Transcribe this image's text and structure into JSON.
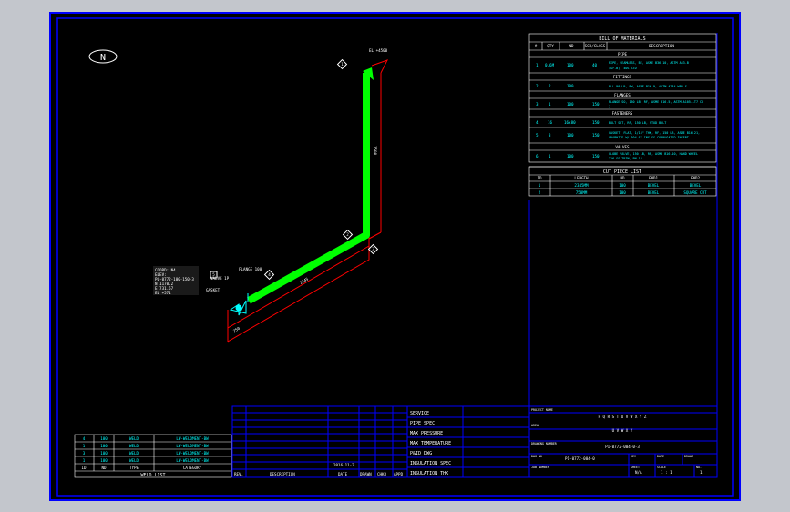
{
  "north_label": "N",
  "bom": {
    "title": "BILL OF MATERIALS",
    "headers": [
      "#",
      "QTY",
      "ND",
      "SCH/CLASS",
      "DESCRIPTION"
    ],
    "sections": [
      {
        "name": "PIPE",
        "rows": [
          [
            "1",
            "0.6M",
            "100",
            "40",
            "PIPE, SEAMLESS, BE, ASME B36.10, ASTM A53-B",
            "(Gr.B), 40S STD"
          ]
        ]
      },
      {
        "name": "FITTINGS",
        "rows": [
          [
            "2",
            "2",
            "100",
            "",
            "ELL 90 LR, BW, ASME B16.9, ASTM A234-WPB-S",
            ""
          ]
        ]
      },
      {
        "name": "FLANGES",
        "rows": [
          [
            "3",
            "1",
            "100",
            "150",
            "FLANGE SO, 150 LB, RF, ASME B16.5, ASTM A105-LT7 CL",
            "1"
          ]
        ]
      },
      {
        "name": "FASTENERS",
        "rows": [
          [
            "4",
            "16",
            "16x80",
            "150",
            "BOLT SET, RF, 150 LB, STUD BOLT",
            ""
          ],
          [
            "5",
            "3",
            "100",
            "150",
            "GASKET, FLAT, 1/16\" THK, RF, 150 LB, ASME B16.21,",
            "GRAPHITE W/ 304 SS INS SS CORRUGATED INSERT"
          ]
        ]
      },
      {
        "name": "VALVES",
        "rows": [
          [
            "6",
            "1",
            "100",
            "150",
            "GLOBE VALVE, 150 LB, RF, ASME B16.10, HAND WHEEL",
            "316 SS TRIM, PN 16"
          ]
        ]
      }
    ]
  },
  "cut_list": {
    "title": "CUT PIECE LIST",
    "headers": [
      "ID",
      "LENGTH",
      "ND",
      "END1",
      "END2"
    ],
    "rows": [
      [
        "1",
        "2345MM",
        "100",
        "BEVEL",
        "BEVEL"
      ],
      [
        "2",
        "750MM",
        "100",
        "BEVEL",
        "SQUARE CUT"
      ]
    ]
  },
  "weld_list": {
    "title": "WELD LIST",
    "headers": [
      "ID",
      "ND",
      "TYPE",
      "CATEGORY"
    ],
    "rows": [
      [
        "4",
        "100",
        "WELD",
        "LW-WELDMENT-BW"
      ],
      [
        "1",
        "100",
        "WELD",
        "LW-WELDMENT-BW"
      ],
      [
        "3",
        "100",
        "WELD",
        "LW-WELDMENT-BW"
      ],
      [
        "1",
        "100",
        "WELD",
        "LW-WELDMENT-BW"
      ]
    ]
  },
  "revision": {
    "headers": [
      "REV.",
      "DESCRIPTION",
      "DATE",
      "DRAWN",
      "CHKD",
      "APPD"
    ],
    "date_value": "2016-11-2"
  },
  "design": {
    "labels": [
      "SERVICE",
      "PIPE SPEC",
      "MAX PRESSURE",
      "MAX TEMPERATURE",
      "P&ID DWG",
      "INSULATION SPEC",
      "INSULATION THK"
    ]
  },
  "title_block": {
    "project_name_label": "PROJECT NAME",
    "project_name": "P Q R S T U V W X Y Z",
    "area_label": "AREA",
    "area": "U V W X Y",
    "drawing_label": "DRAWING NUMBER",
    "drawing": "P1-0772-004-0-3",
    "dwg_no_label": "DWG NO",
    "dwg_no": "P1-0772-004-0",
    "rev_label": "REV",
    "date_label": "DATE",
    "by_label": "DRAWN",
    "job_label": "JOB NUMBER",
    "sheet_label": "SHEET",
    "sheet": "N/A",
    "scale_label": "SCALE",
    "scale": "1 : 1",
    "no_label": "NO.",
    "no": "1"
  },
  "drawing_notes": {
    "info_block": [
      "COORD: N4",
      "ELEV:",
      "PL-0772-100-150-3",
      "N 1170.2",
      "E 731.57",
      "EL +571"
    ],
    "valve_tag": "VALVE 1P",
    "flange_tag": "FLANGE 100",
    "gasket_tag": "GASKET",
    "top_tag": "EL +4500",
    "dims": [
      "1500",
      "2345",
      "750"
    ],
    "balloons": [
      "1",
      "2",
      "3",
      "4",
      "5"
    ]
  },
  "colors": {
    "pipe": "#00ff00",
    "dimension": "#ff0000",
    "frame": "#0000ff",
    "text": "#00ffff"
  }
}
